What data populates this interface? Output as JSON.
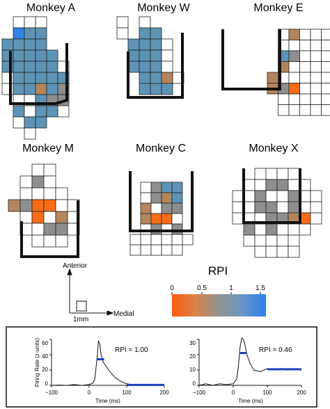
{
  "colors": {
    "grid_line": "#222222",
    "orange": "#f86b17",
    "tan": "#b3855c",
    "gray": "#8e8e8e",
    "steel": "#5d94b6",
    "blue": "#2e83e6",
    "trace_blue": "#1d3fbf"
  },
  "monkeys": [
    {
      "name": "Monkey A",
      "cells": [
        [
          "",
          "W",
          "W",
          "W",
          "",
          "",
          "",
          "",
          ""
        ],
        [
          "",
          "B",
          "S",
          "S",
          "",
          "",
          "",
          "",
          ""
        ],
        [
          "S",
          "S",
          "S",
          "S",
          "",
          "",
          "",
          "",
          ""
        ],
        [
          "S",
          "S",
          "S",
          "S",
          "S",
          "",
          "",
          "",
          ""
        ],
        [
          "S",
          "S",
          "S",
          "S",
          "S",
          "W",
          "",
          "",
          ""
        ],
        [
          "W",
          "S",
          "S",
          "S",
          "S",
          "S",
          "",
          "",
          ""
        ],
        [
          "W",
          "S",
          "S",
          "T",
          "S",
          "G",
          "",
          "",
          ""
        ],
        [
          "",
          "W",
          "W",
          "S",
          "G",
          "G",
          "",
          "",
          ""
        ],
        [
          "",
          "S",
          "W",
          "S",
          "S",
          "W",
          "",
          "",
          ""
        ],
        [
          "",
          "W",
          "S",
          "S",
          "",
          "",
          "",
          "",
          ""
        ],
        [
          "",
          "",
          "W",
          "",
          "",
          "",
          "",
          "",
          ""
        ]
      ]
    },
    {
      "name": "Monkey W",
      "cells": [
        [
          "W",
          "",
          "W",
          "",
          "",
          "",
          "",
          ""
        ],
        [
          "W",
          "",
          "S",
          "S",
          "",
          "",
          "",
          ""
        ],
        [
          "",
          "S",
          "S",
          "S",
          "W",
          "",
          "",
          ""
        ],
        [
          "",
          "S",
          "S",
          "S",
          "W",
          "",
          "",
          ""
        ],
        [
          "",
          "S",
          "S",
          "S",
          "W",
          "",
          "",
          ""
        ],
        [
          "",
          "",
          "S",
          "S",
          "T",
          "W",
          "",
          ""
        ],
        [
          "",
          "",
          "S",
          "S",
          "S",
          "",
          "",
          ""
        ]
      ]
    },
    {
      "name": "Monkey E",
      "cells": [
        [
          "",
          "",
          "",
          "",
          "",
          "W",
          "T",
          "W",
          "W",
          "W",
          ""
        ],
        [
          "",
          "",
          "",
          "",
          "",
          "W",
          "W",
          "W",
          "W",
          "W",
          ""
        ],
        [
          "",
          "",
          "",
          "",
          "",
          "S",
          "G",
          "W",
          "W",
          "W",
          ""
        ],
        [
          "",
          "",
          "",
          "",
          "",
          "T",
          "W",
          "W",
          "W",
          "W",
          ""
        ],
        [
          "",
          "",
          "",
          "",
          "T",
          "W",
          "W",
          "W",
          "W",
          "W",
          ""
        ],
        [
          "",
          "",
          "",
          "",
          "T",
          "G",
          "O",
          "W",
          "W",
          "W",
          ""
        ],
        [
          "",
          "",
          "",
          "",
          "",
          "W",
          "W",
          "W",
          "W",
          "W",
          ""
        ],
        [
          "",
          "",
          "",
          "",
          "",
          "W",
          "W",
          "W",
          "W",
          "W",
          ""
        ]
      ]
    },
    {
      "name": "Monkey M",
      "cells": [
        [
          "",
          "",
          "W",
          "W",
          "",
          ""
        ],
        [
          "",
          "W",
          "G",
          "W",
          "",
          ""
        ],
        [
          "",
          "W",
          "W",
          "W",
          "W",
          ""
        ],
        [
          "T",
          "G",
          "O",
          "O",
          "W",
          "W"
        ],
        [
          "",
          "W",
          "O",
          "W",
          "T",
          "W"
        ],
        [
          "",
          "W",
          "W",
          "G",
          "G",
          "W"
        ],
        [
          "",
          "",
          "W",
          "W",
          "W",
          ""
        ]
      ]
    },
    {
      "name": "Monkey C",
      "cells": [
        [
          "",
          "W",
          "G",
          "S",
          "S",
          ""
        ],
        [
          "",
          "W",
          "G",
          "T",
          "S",
          ""
        ],
        [
          "",
          "T",
          "W",
          "G",
          "G",
          ""
        ],
        [
          "",
          "T",
          "O",
          "O",
          "W",
          ""
        ],
        [
          "",
          "W",
          "G",
          "W",
          "G",
          ""
        ],
        [
          "W",
          "W",
          "W",
          "W",
          "W",
          "W"
        ],
        [
          "W",
          "W",
          "W",
          "W",
          "W",
          ""
        ]
      ]
    },
    {
      "name": "Monkey X",
      "cells": [
        [
          "",
          "",
          "W",
          "W",
          "W",
          "W",
          "",
          ""
        ],
        [
          "",
          "W",
          "W",
          "G",
          "G",
          "W",
          "W",
          ""
        ],
        [
          "W",
          "W",
          "G",
          "W",
          "W",
          "G",
          "W",
          "W"
        ],
        [
          "W",
          "W",
          "G",
          "G",
          "W",
          "G",
          "W",
          "W"
        ],
        [
          "W",
          "W",
          "W",
          "G",
          "G",
          "T",
          "O",
          "W"
        ],
        [
          "",
          "G",
          "W",
          "G",
          "W",
          "W",
          "W",
          ""
        ],
        [
          "",
          "W",
          "W",
          "W",
          "W",
          "W",
          "",
          ""
        ],
        [
          "",
          "",
          "W",
          "W",
          "W",
          "W",
          "",
          ""
        ]
      ]
    }
  ],
  "orientation": {
    "anterior": "Anterior",
    "medial": "Medial",
    "scale": "1mm"
  },
  "rpi_scale": {
    "title": "RPI",
    "ticks": [
      "0",
      "0.5",
      "1",
      "1.5"
    ]
  },
  "examples": [
    {
      "rpi_label": "RPI = 1.00",
      "y_ticks": [
        "60",
        "40",
        "20",
        "0"
      ],
      "x_ticks": [
        "−100",
        "0",
        "100",
        "200"
      ],
      "xlabel": "Time (ms)",
      "ylabel": "Firing Rate (z-units)",
      "trace": [
        [
          -100,
          0
        ],
        [
          -80,
          0.5
        ],
        [
          -60,
          0
        ],
        [
          -40,
          1
        ],
        [
          -20,
          0
        ],
        [
          0,
          1
        ],
        [
          10,
          3
        ],
        [
          15,
          8
        ],
        [
          20,
          30
        ],
        [
          25,
          58
        ],
        [
          28,
          55
        ],
        [
          32,
          40
        ],
        [
          38,
          30
        ],
        [
          45,
          25
        ],
        [
          55,
          18
        ],
        [
          70,
          10
        ],
        [
          85,
          5
        ],
        [
          100,
          2
        ],
        [
          120,
          0.5
        ],
        [
          150,
          0
        ],
        [
          180,
          0.5
        ],
        [
          200,
          0
        ]
      ],
      "ymax": 60
    },
    {
      "rpi_label": "RPI = 0.46",
      "y_ticks": [
        "30",
        "20",
        "10",
        "0"
      ],
      "x_ticks": [
        "−100",
        "0",
        "100",
        "200"
      ],
      "xlabel": "Time (ms)",
      "ylabel": "",
      "trace": [
        [
          -100,
          0
        ],
        [
          -80,
          1
        ],
        [
          -60,
          0
        ],
        [
          -40,
          1
        ],
        [
          -20,
          0.5
        ],
        [
          0,
          1
        ],
        [
          10,
          4
        ],
        [
          15,
          12
        ],
        [
          20,
          25
        ],
        [
          25,
          31
        ],
        [
          30,
          30
        ],
        [
          35,
          26
        ],
        [
          40,
          20
        ],
        [
          50,
          14
        ],
        [
          60,
          10
        ],
        [
          80,
          9
        ],
        [
          100,
          11
        ],
        [
          120,
          10
        ],
        [
          140,
          11
        ],
        [
          160,
          10
        ],
        [
          180,
          11
        ],
        [
          200,
          10
        ]
      ],
      "ymax": 30
    }
  ]
}
